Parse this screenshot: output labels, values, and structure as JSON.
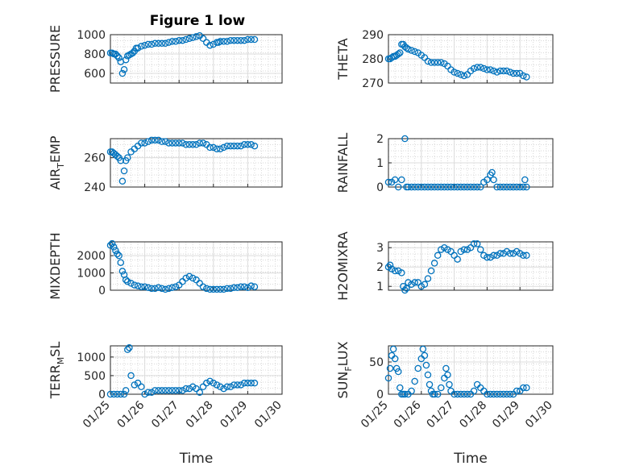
{
  "figure": {
    "title": "Figure 1 low"
  },
  "chart_data": [
    {
      "type": "scatter",
      "ylabel": "PRESSURE",
      "ylim": [
        500,
        1000
      ],
      "yticks": [
        600,
        800,
        1000
      ],
      "xlim": [
        0,
        5
      ],
      "xticklabels": [],
      "grid": "on",
      "marker_color": "#0072BD",
      "series": [
        {
          "x": [
            0,
            0.05,
            0.1,
            0.15,
            0.2,
            0.25,
            0.3,
            0.35,
            0.4,
            0.45,
            0.5,
            0.55,
            0.6,
            0.65,
            0.7,
            0.75,
            0.8,
            0.9,
            1.0,
            1.1,
            1.2,
            1.3,
            1.4,
            1.5,
            1.6,
            1.7,
            1.8,
            1.9,
            2.0,
            2.1,
            2.2,
            2.3,
            2.4,
            2.5,
            2.6,
            2.7,
            2.8,
            2.9,
            3.0,
            3.1,
            3.15,
            3.2,
            3.3,
            3.4,
            3.5,
            3.6,
            3.7,
            3.8,
            3.9,
            4.0,
            4.1,
            4.2
          ],
          "y": [
            810,
            810,
            800,
            800,
            780,
            760,
            720,
            600,
            640,
            740,
            780,
            790,
            800,
            810,
            830,
            860,
            860,
            880,
            890,
            900,
            900,
            910,
            910,
            910,
            910,
            920,
            930,
            930,
            940,
            940,
            950,
            960,
            970,
            980,
            990,
            960,
            920,
            890,
            900,
            920,
            920,
            930,
            930,
            930,
            940,
            940,
            940,
            940,
            940,
            950,
            950,
            950
          ]
        }
      ]
    },
    {
      "type": "scatter",
      "ylabel": "THETA",
      "ylim": [
        270,
        290
      ],
      "yticks": [
        270,
        280,
        290
      ],
      "xlim": [
        0,
        5
      ],
      "xticklabels": [],
      "grid": "on",
      "marker_color": "#0072BD",
      "series": [
        {
          "x": [
            0,
            0.05,
            0.1,
            0.15,
            0.2,
            0.25,
            0.3,
            0.35,
            0.4,
            0.45,
            0.5,
            0.55,
            0.6,
            0.7,
            0.8,
            0.9,
            1.0,
            1.1,
            1.2,
            1.3,
            1.4,
            1.5,
            1.6,
            1.7,
            1.8,
            1.9,
            2.0,
            2.1,
            2.2,
            2.3,
            2.4,
            2.5,
            2.6,
            2.7,
            2.8,
            2.9,
            3.0,
            3.1,
            3.2,
            3.3,
            3.4,
            3.5,
            3.6,
            3.7,
            3.8,
            3.9,
            4.0,
            4.1,
            4.2
          ],
          "y": [
            280,
            280,
            280.5,
            281,
            281,
            281.5,
            282,
            282.5,
            286,
            286,
            285,
            284.5,
            284,
            283.5,
            283,
            282.5,
            281.5,
            280.5,
            279,
            278.5,
            278.5,
            278.5,
            278.5,
            278,
            277,
            275.5,
            274.5,
            274,
            273.5,
            273,
            273.5,
            275,
            276,
            276.5,
            276.5,
            276,
            275.5,
            275.5,
            275,
            274.5,
            275,
            275,
            275,
            274.5,
            274,
            274,
            274,
            273,
            272.5
          ]
        }
      ]
    },
    {
      "type": "scatter",
      "ylabel": "AIR_TEMP",
      "ylim": [
        240,
        273
      ],
      "yticks": [
        240,
        260
      ],
      "xlim": [
        0,
        5
      ],
      "xticklabels": [],
      "grid": "on",
      "marker_color": "#0072BD",
      "series": [
        {
          "x": [
            0,
            0.05,
            0.1,
            0.15,
            0.2,
            0.25,
            0.3,
            0.35,
            0.4,
            0.45,
            0.5,
            0.6,
            0.7,
            0.8,
            0.9,
            1.0,
            1.1,
            1.2,
            1.3,
            1.4,
            1.5,
            1.6,
            1.7,
            1.8,
            1.9,
            2.0,
            2.1,
            2.2,
            2.3,
            2.4,
            2.5,
            2.6,
            2.7,
            2.8,
            2.9,
            3.0,
            3.1,
            3.2,
            3.3,
            3.4,
            3.5,
            3.6,
            3.7,
            3.8,
            3.9,
            4.0,
            4.1,
            4.2
          ],
          "y": [
            264,
            264,
            263,
            262,
            261,
            260,
            258,
            244,
            251,
            258,
            260,
            264,
            266,
            268,
            270,
            270,
            271,
            272,
            272,
            272,
            271,
            271,
            270,
            270,
            270,
            270,
            270,
            269,
            269,
            269,
            269,
            270,
            270,
            269,
            267,
            267,
            266,
            266,
            267,
            268,
            268,
            268,
            268,
            268,
            269,
            269,
            269,
            268
          ]
        }
      ]
    },
    {
      "type": "scatter",
      "ylabel": "RAINFALL",
      "ylim": [
        0,
        2
      ],
      "yticks": [
        0,
        1,
        2
      ],
      "xlim": [
        0,
        5
      ],
      "xticklabels": [],
      "grid": "on",
      "marker_color": "#0072BD",
      "series": [
        {
          "x": [
            0,
            0.1,
            0.2,
            0.3,
            0.4,
            0.5,
            0.55,
            0.6,
            0.7,
            0.8,
            0.9,
            1.0,
            1.1,
            1.2,
            1.3,
            1.4,
            1.5,
            1.6,
            1.7,
            1.8,
            1.9,
            2.0,
            2.1,
            2.2,
            2.3,
            2.4,
            2.5,
            2.6,
            2.7,
            2.8,
            2.9,
            3.0,
            3.1,
            3.15,
            3.2,
            3.3,
            3.4,
            3.5,
            3.6,
            3.7,
            3.8,
            3.9,
            4.0,
            4.1,
            4.15,
            4.2
          ],
          "y": [
            0.2,
            0.2,
            0.3,
            0,
            0.3,
            2,
            0,
            0,
            0,
            0,
            0,
            0,
            0,
            0,
            0,
            0,
            0,
            0,
            0,
            0,
            0,
            0,
            0,
            0,
            0,
            0,
            0,
            0,
            0,
            0,
            0.2,
            0.3,
            0.5,
            0.6,
            0.3,
            0,
            0,
            0,
            0,
            0,
            0,
            0,
            0,
            0,
            0.3,
            0
          ]
        }
      ]
    },
    {
      "type": "scatter",
      "ylabel": "MIXDEPTH",
      "ylim": [
        0,
        2800
      ],
      "yticks": [
        0,
        1000,
        2000
      ],
      "xlim": [
        0,
        5
      ],
      "xticklabels": [],
      "grid": "on",
      "marker_color": "#0072BD",
      "series": [
        {
          "x": [
            0,
            0.05,
            0.1,
            0.15,
            0.2,
            0.25,
            0.3,
            0.35,
            0.4,
            0.45,
            0.5,
            0.6,
            0.7,
            0.8,
            0.9,
            1.0,
            1.1,
            1.2,
            1.3,
            1.4,
            1.5,
            1.6,
            1.7,
            1.8,
            1.9,
            2.0,
            2.1,
            2.2,
            2.3,
            2.4,
            2.5,
            2.6,
            2.7,
            2.8,
            2.9,
            3.0,
            3.1,
            3.2,
            3.3,
            3.4,
            3.5,
            3.6,
            3.7,
            3.8,
            3.9,
            4.0,
            4.1,
            4.2
          ],
          "y": [
            2600,
            2700,
            2500,
            2300,
            2100,
            2000,
            1600,
            1100,
            900,
            600,
            500,
            400,
            300,
            250,
            200,
            200,
            150,
            100,
            100,
            150,
            100,
            50,
            100,
            150,
            200,
            300,
            500,
            700,
            800,
            700,
            600,
            400,
            200,
            100,
            50,
            50,
            50,
            50,
            50,
            100,
            100,
            150,
            150,
            200,
            200,
            150,
            250,
            200
          ]
        }
      ]
    },
    {
      "type": "scatter",
      "ylabel": "H2OMIXRA",
      "ylim": [
        0.8,
        3.3
      ],
      "yticks": [
        1,
        2,
        3
      ],
      "xlim": [
        0,
        5
      ],
      "xticklabels": [],
      "grid": "on",
      "marker_color": "#0072BD",
      "series": [
        {
          "x": [
            0,
            0.05,
            0.1,
            0.2,
            0.3,
            0.4,
            0.45,
            0.5,
            0.55,
            0.6,
            0.7,
            0.8,
            0.9,
            1.0,
            1.1,
            1.2,
            1.3,
            1.4,
            1.5,
            1.6,
            1.7,
            1.8,
            1.9,
            2.0,
            2.1,
            2.2,
            2.3,
            2.4,
            2.5,
            2.6,
            2.7,
            2.8,
            2.9,
            3.0,
            3.1,
            3.2,
            3.3,
            3.4,
            3.5,
            3.6,
            3.7,
            3.8,
            3.9,
            4.0,
            4.1,
            4.2
          ],
          "y": [
            2.0,
            2.1,
            1.9,
            1.8,
            1.8,
            1.7,
            1.0,
            0.8,
            0.9,
            1.2,
            1.1,
            1.2,
            1.2,
            1.0,
            1.1,
            1.4,
            1.8,
            2.2,
            2.6,
            2.9,
            3.0,
            2.9,
            2.8,
            2.6,
            2.4,
            2.8,
            2.9,
            2.9,
            3.0,
            3.2,
            3.2,
            2.9,
            2.6,
            2.5,
            2.5,
            2.6,
            2.6,
            2.7,
            2.7,
            2.8,
            2.7,
            2.7,
            2.8,
            2.7,
            2.6,
            2.6
          ]
        }
      ]
    },
    {
      "type": "scatter",
      "ylabel": "TERR_MSL",
      "ylim": [
        0,
        1300
      ],
      "yticks": [
        0,
        500,
        1000
      ],
      "xlim": [
        0,
        5
      ],
      "xticklabels": [
        "01/25",
        "01/26",
        "01/27",
        "01/28",
        "01/29",
        "01/30"
      ],
      "xlabel": "Time",
      "grid": "on",
      "marker_color": "#0072BD",
      "series": [
        {
          "x": [
            0,
            0.1,
            0.2,
            0.3,
            0.4,
            0.45,
            0.5,
            0.55,
            0.6,
            0.7,
            0.8,
            0.9,
            1.0,
            1.1,
            1.2,
            1.3,
            1.4,
            1.5,
            1.6,
            1.7,
            1.8,
            1.9,
            2.0,
            2.1,
            2.2,
            2.3,
            2.4,
            2.5,
            2.6,
            2.7,
            2.8,
            2.9,
            3.0,
            3.1,
            3.2,
            3.3,
            3.4,
            3.5,
            3.6,
            3.7,
            3.8,
            3.9,
            4.0,
            4.1,
            4.2
          ],
          "y": [
            0,
            0,
            0,
            0,
            0,
            100,
            1200,
            1250,
            500,
            250,
            300,
            200,
            0,
            50,
            50,
            100,
            100,
            100,
            100,
            100,
            100,
            100,
            100,
            100,
            150,
            150,
            200,
            150,
            50,
            200,
            300,
            350,
            300,
            250,
            200,
            150,
            200,
            200,
            250,
            250,
            250,
            300,
            300,
            300,
            300
          ]
        }
      ]
    },
    {
      "type": "scatter",
      "ylabel": "SUN_FLUX",
      "ylim": [
        0,
        75
      ],
      "yticks": [
        0,
        50
      ],
      "xlim": [
        0,
        5
      ],
      "xticklabels": [
        "01/25",
        "01/26",
        "01/27",
        "01/28",
        "01/29",
        "01/30"
      ],
      "xlabel": "Time",
      "grid": "on",
      "marker_color": "#0072BD",
      "series": [
        {
          "x": [
            0,
            0.05,
            0.1,
            0.15,
            0.2,
            0.25,
            0.3,
            0.35,
            0.4,
            0.45,
            0.5,
            0.6,
            0.7,
            0.8,
            0.9,
            1.0,
            1.05,
            1.1,
            1.15,
            1.2,
            1.25,
            1.3,
            1.35,
            1.4,
            1.5,
            1.6,
            1.7,
            1.75,
            1.8,
            1.85,
            1.9,
            2.0,
            2.1,
            2.2,
            2.3,
            2.4,
            2.5,
            2.6,
            2.7,
            2.8,
            2.9,
            3.0,
            3.1,
            3.2,
            3.3,
            3.4,
            3.5,
            3.6,
            3.7,
            3.8,
            3.9,
            4.0,
            4.1,
            4.2
          ],
          "y": [
            25,
            40,
            60,
            70,
            55,
            40,
            35,
            10,
            0,
            0,
            0,
            0,
            5,
            20,
            40,
            55,
            70,
            60,
            45,
            30,
            15,
            5,
            0,
            0,
            0,
            10,
            25,
            40,
            30,
            15,
            5,
            0,
            0,
            0,
            0,
            0,
            0,
            5,
            15,
            10,
            5,
            0,
            0,
            0,
            0,
            0,
            0,
            0,
            0,
            0,
            5,
            5,
            10,
            10
          ]
        }
      ]
    }
  ]
}
